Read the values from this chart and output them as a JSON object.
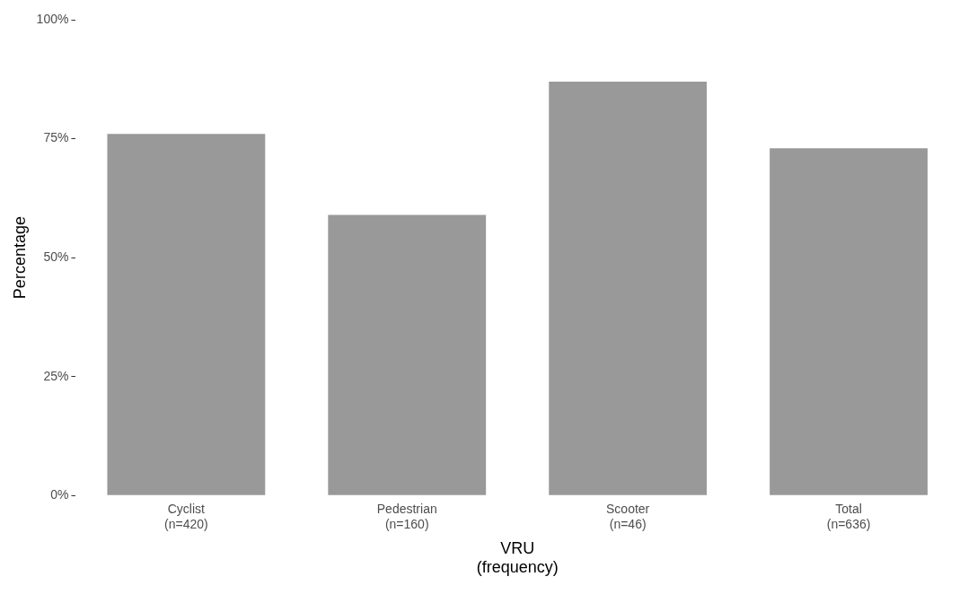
{
  "chart_data": {
    "type": "bar",
    "xlabel": "VRU\n(frequency)",
    "ylabel": "Percentage",
    "categories": [
      "Cyclist\n(n=420)",
      "Pedestrian\n(n=160)",
      "Scooter\n(n=46)",
      "Total\n(n=636)"
    ],
    "values": [
      76,
      59,
      87,
      73
    ],
    "color": "#999999",
    "ylim": [
      0,
      100
    ],
    "yticks": [
      {
        "value": 0,
        "label": "0%"
      },
      {
        "value": 25,
        "label": "25%"
      },
      {
        "value": 50,
        "label": "50%"
      },
      {
        "value": 75,
        "label": "75%"
      },
      {
        "value": 100,
        "label": "100%"
      }
    ],
    "grid": false,
    "legend": false
  }
}
